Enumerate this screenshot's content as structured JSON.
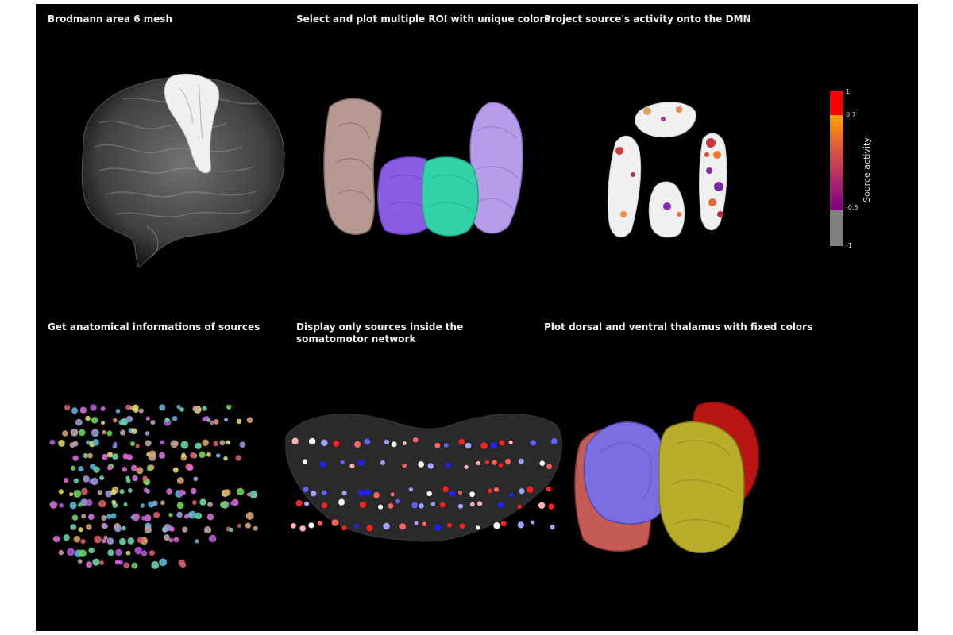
{
  "panels": [
    {
      "title": "Brodmann area 6 mesh"
    },
    {
      "title": "Select and plot multiple ROI with unique colors"
    },
    {
      "title": "Project source's activity onto the DMN"
    },
    {
      "title": "Get anatomical informations of sources"
    },
    {
      "title": "Display only sources inside the somatomotor network"
    },
    {
      "title": "Plot dorsal and ventral thalamus with fixed colors"
    }
  ],
  "colorbar": {
    "title": "Source activity",
    "ticks": [
      "1",
      "0.7",
      "-0.5",
      "-1"
    ],
    "colors": {
      "top": "#ff0000",
      "upper": "#ffa500",
      "mid": "#800080",
      "bottom": "#808080"
    }
  },
  "colors": {
    "background": "#000000",
    "brain_gray": "#8a8a8a",
    "ba6_mesh": "#f2f2f2",
    "roi_tan": "#b69a92",
    "roi_violet": "#8a5ce6",
    "roi_teal": "#33d1a8",
    "roi_lavender": "#b79cec",
    "thal_blue": "#7b6ee0",
    "thal_olive": "#b9ad2a",
    "thal_red": "#c01818",
    "thal_salmon": "#c45c55"
  }
}
